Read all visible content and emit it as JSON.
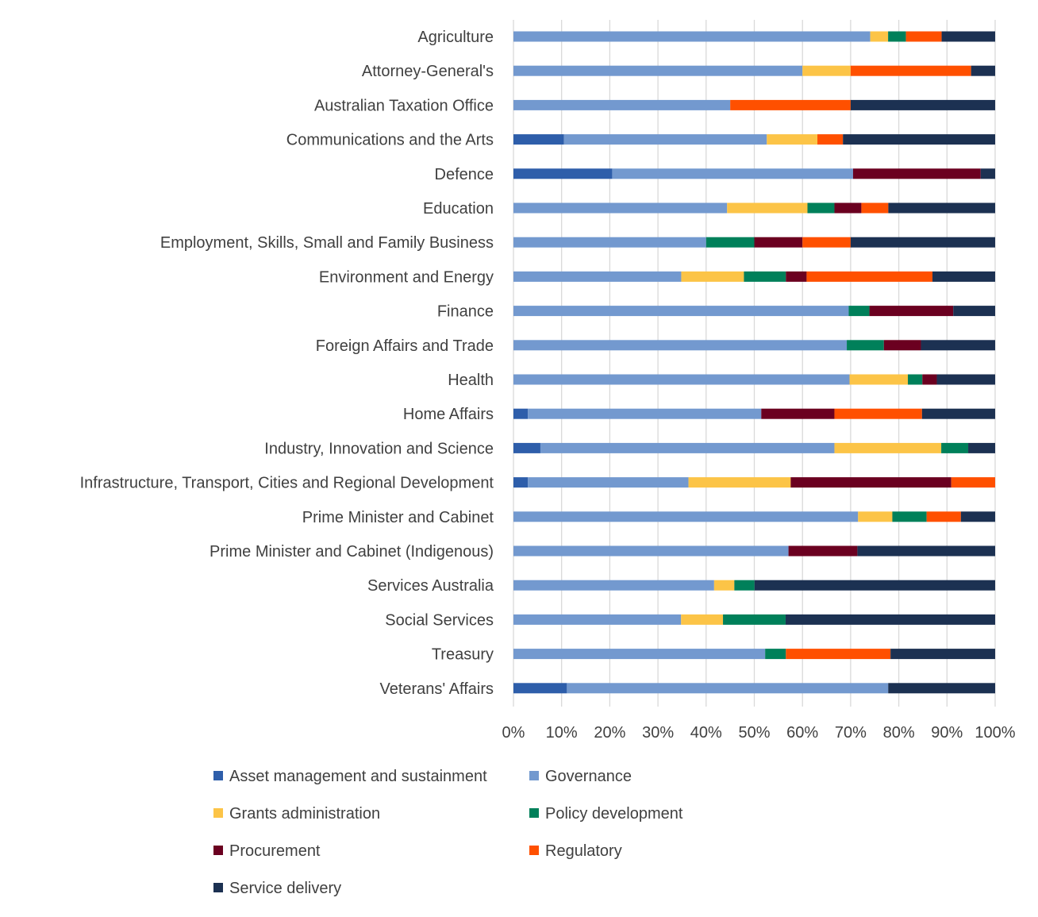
{
  "chart_data": {
    "type": "bar",
    "orientation": "horizontal",
    "stacked": "percent",
    "title": "",
    "xlabel": "",
    "ylabel": "",
    "xlim": [
      0,
      100
    ],
    "x_ticks": [
      "0%",
      "10%",
      "20%",
      "30%",
      "40%",
      "50%",
      "60%",
      "70%",
      "80%",
      "90%",
      "100%"
    ],
    "grid": "vertical",
    "legend_position": "bottom",
    "categories": [
      "Agriculture",
      "Attorney-General's",
      "Australian Taxation Office",
      "Communications and the Arts",
      "Defence",
      "Education",
      "Employment, Skills, Small and Family Business",
      "Environment and Energy",
      "Finance",
      "Foreign Affairs and Trade",
      "Health",
      "Home Affairs",
      "Industry, Innovation and Science",
      "Infrastructure, Transport, Cities and Regional Development",
      "Prime Minister and Cabinet",
      "Prime Minister and Cabinet (Indigenous)",
      "Services Australia",
      "Social Services",
      "Treasury",
      "Veterans' Affairs"
    ],
    "series": [
      {
        "name": "Asset management and sustainment",
        "color": "#2E5EAA",
        "values": [
          0,
          0,
          0,
          10.5,
          20.5,
          0,
          0,
          0,
          0,
          0,
          0,
          3,
          5.6,
          3,
          0,
          0,
          0,
          0,
          0,
          11.1
        ]
      },
      {
        "name": "Governance",
        "color": "#7399CF",
        "values": [
          74,
          60,
          45,
          42.1,
          50,
          44.4,
          40,
          34.8,
          69.6,
          69.2,
          69.7,
          48.5,
          61.1,
          33.3,
          71.4,
          57.1,
          41.7,
          34.8,
          52.2,
          66.7
        ]
      },
      {
        "name": "Grants administration",
        "color": "#FCC447",
        "values": [
          3.7,
          10,
          0,
          10.5,
          0,
          16.7,
          0,
          13,
          0,
          0,
          12.1,
          0,
          22.2,
          21.2,
          7.1,
          0,
          4.2,
          8.7,
          0,
          0
        ]
      },
      {
        "name": "Policy development",
        "color": "#00805A",
        "values": [
          3.7,
          0,
          0,
          0,
          0,
          5.6,
          10,
          8.7,
          4.3,
          7.7,
          3,
          0,
          5.6,
          0,
          7.1,
          0,
          4.2,
          13,
          4.3,
          0
        ]
      },
      {
        "name": "Procurement",
        "color": "#6B0020",
        "values": [
          0,
          0,
          0,
          0,
          26.5,
          5.6,
          10,
          4.3,
          17.4,
          7.7,
          3,
          15.2,
          0,
          33.3,
          0,
          14.3,
          0,
          0,
          0,
          0
        ]
      },
      {
        "name": "Regulatory",
        "color": "#FF5000",
        "values": [
          7.4,
          25,
          25,
          5.3,
          0,
          5.6,
          10,
          26.1,
          0,
          0,
          0,
          18.2,
          0,
          9.1,
          7.1,
          0,
          0,
          0,
          21.7,
          0
        ]
      },
      {
        "name": "Service delivery",
        "color": "#1C3152",
        "values": [
          11.1,
          5,
          30,
          31.6,
          3,
          22.2,
          30,
          13,
          8.7,
          15.4,
          12.1,
          15.2,
          5.6,
          0,
          7.1,
          28.6,
          50,
          43.5,
          21.7,
          22.2
        ]
      }
    ]
  }
}
